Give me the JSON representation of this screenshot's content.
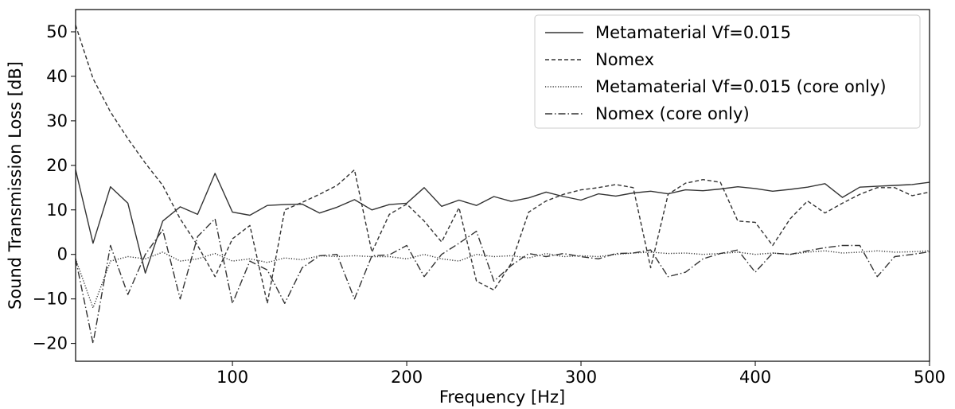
{
  "chart_data": {
    "type": "line",
    "title": "",
    "xlabel": "Frequency [Hz]",
    "ylabel": "Sound Transmission Loss [dB]",
    "xlim": [
      10,
      500
    ],
    "ylim": [
      -24,
      55
    ],
    "xticks": [
      100,
      200,
      300,
      400,
      500
    ],
    "yticks": [
      -20,
      -10,
      0,
      10,
      20,
      30,
      40,
      50
    ],
    "grid": false,
    "legend_position": "top-right",
    "x": [
      10,
      20,
      30,
      40,
      50,
      60,
      70,
      80,
      90,
      100,
      110,
      120,
      130,
      140,
      150,
      160,
      170,
      180,
      190,
      200,
      210,
      220,
      230,
      240,
      250,
      260,
      270,
      280,
      290,
      300,
      310,
      320,
      330,
      340,
      350,
      360,
      370,
      380,
      390,
      400,
      410,
      420,
      430,
      440,
      450,
      460,
      470,
      480,
      490,
      500
    ],
    "series": [
      {
        "name": "Metamaterial Vf=0.015",
        "style": "solid",
        "color": "#333333",
        "values": [
          19.0,
          2.5,
          15.2,
          11.5,
          -4.2,
          7.5,
          10.7,
          9.0,
          18.2,
          9.5,
          8.8,
          11.0,
          11.2,
          11.3,
          9.3,
          10.6,
          12.3,
          10.0,
          11.2,
          11.5,
          15.0,
          10.8,
          12.2,
          11.0,
          13.0,
          11.9,
          12.7,
          14.0,
          13.0,
          12.2,
          13.6,
          13.1,
          13.8,
          14.2,
          13.6,
          14.5,
          14.3,
          14.7,
          15.2,
          14.8,
          14.2,
          14.6,
          15.1,
          15.9,
          12.8,
          15.1,
          15.3,
          15.5,
          15.7,
          16.2
        ]
      },
      {
        "name": "Nomex",
        "style": "dashed",
        "color": "#333333",
        "values": [
          51.5,
          39.5,
          32.0,
          26.0,
          20.5,
          15.5,
          8.0,
          2.0,
          -5.0,
          3.5,
          6.5,
          -11.0,
          10.0,
          11.7,
          13.5,
          15.5,
          19.0,
          0.5,
          9.0,
          11.3,
          7.5,
          2.8,
          10.5,
          -6.0,
          -8.0,
          -2.0,
          9.5,
          12.0,
          13.5,
          14.5,
          15.0,
          15.7,
          15.0,
          -3.0,
          13.5,
          16.0,
          16.8,
          16.2,
          7.5,
          7.2,
          2.0,
          8.0,
          12.0,
          9.3,
          11.5,
          13.5,
          15.0,
          15.0,
          13.2,
          14.0
        ]
      },
      {
        "name": "Metamaterial Vf=0.015 (core only)",
        "style": "dotted",
        "color": "#333333",
        "values": [
          -1.0,
          -12.0,
          -1.5,
          -0.5,
          -1.0,
          0.5,
          -1.5,
          -1.0,
          0.2,
          -1.5,
          -1.0,
          -1.8,
          -0.8,
          -1.2,
          -0.3,
          -0.5,
          -0.3,
          -0.5,
          -0.5,
          -1.0,
          0.0,
          -1.0,
          -1.5,
          0.0,
          -0.5,
          -0.3,
          -0.8,
          0.2,
          -0.5,
          -0.3,
          -0.5,
          0.0,
          0.3,
          0.5,
          0.2,
          0.3,
          0.0,
          0.2,
          0.5,
          0.0,
          0.3,
          0.0,
          0.5,
          0.8,
          0.3,
          0.5,
          0.8,
          0.5,
          0.6,
          0.8
        ]
      },
      {
        "name": "Nomex (core only)",
        "style": "dashdot",
        "color": "#333333",
        "values": [
          -1.0,
          -20.0,
          2.0,
          -9.0,
          0.0,
          5.5,
          -10.0,
          4.0,
          8.0,
          -11.0,
          -1.5,
          -3.5,
          -11.0,
          -3.0,
          -0.3,
          0.0,
          -10.0,
          -0.3,
          -0.1,
          2.0,
          -5.0,
          0.0,
          2.5,
          5.2,
          -6.0,
          -2.5,
          0.2,
          -0.5,
          0.2,
          -0.5,
          -1.0,
          0.2,
          0.3,
          1.0,
          -5.0,
          -4.0,
          -1.0,
          0.2,
          1.0,
          -4.0,
          0.3,
          0.0,
          0.8,
          1.5,
          2.0,
          2.0,
          -5.0,
          -0.5,
          0.0,
          0.6
        ]
      }
    ]
  }
}
